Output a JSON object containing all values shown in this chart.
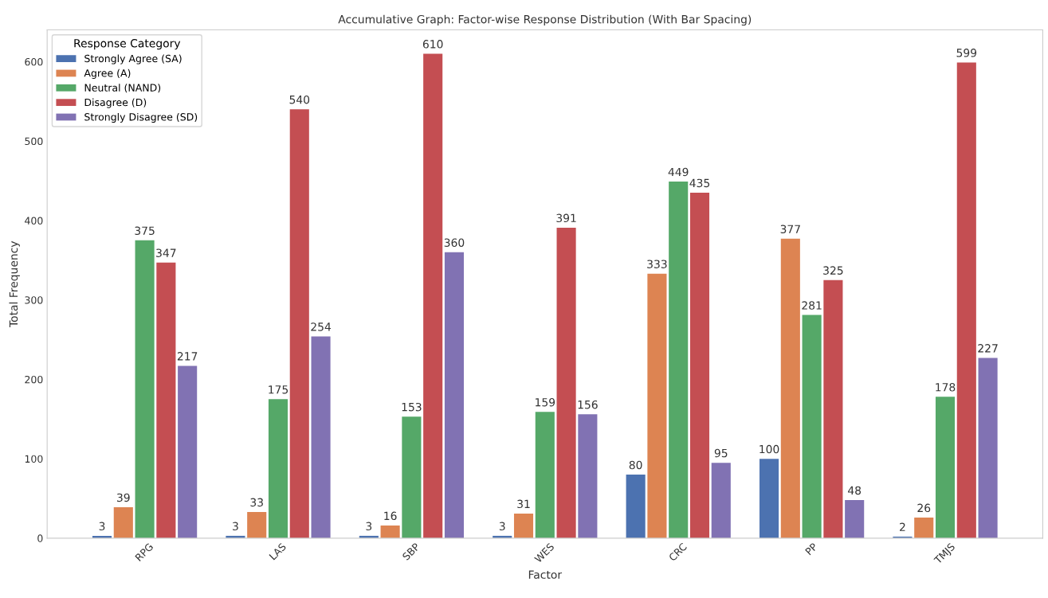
{
  "chart_data": {
    "type": "bar",
    "title": "Accumulative Graph: Factor-wise Response Distribution (With Bar Spacing)",
    "xlabel": "Factor",
    "ylabel": "Total Frequency",
    "legend_title": "Response Category",
    "legend": "top left",
    "data_labels": true,
    "grid": false,
    "categories": [
      "RPG",
      "LAS",
      "SBP",
      "WES",
      "CRC",
      "PP",
      "TMJS"
    ],
    "ylim": [
      0,
      640
    ],
    "yticks": [
      0,
      100,
      200,
      300,
      400,
      500,
      600
    ],
    "series": [
      {
        "name": "Strongly Agree (SA)",
        "color": "#4c72b0",
        "values": [
          3,
          3,
          3,
          3,
          80,
          100,
          2
        ]
      },
      {
        "name": "Agree (A)",
        "color": "#dd8452",
        "values": [
          39,
          33,
          16,
          31,
          333,
          377,
          26
        ]
      },
      {
        "name": "Neutral (NAND)",
        "color": "#55a868",
        "values": [
          375,
          175,
          153,
          159,
          449,
          281,
          178
        ]
      },
      {
        "name": "Disagree (D)",
        "color": "#c44e52",
        "values": [
          347,
          540,
          610,
          391,
          435,
          325,
          599
        ]
      },
      {
        "name": "Strongly Disagree (SD)",
        "color": "#8172b3",
        "values": [
          217,
          254,
          360,
          156,
          95,
          48,
          227
        ]
      }
    ]
  }
}
